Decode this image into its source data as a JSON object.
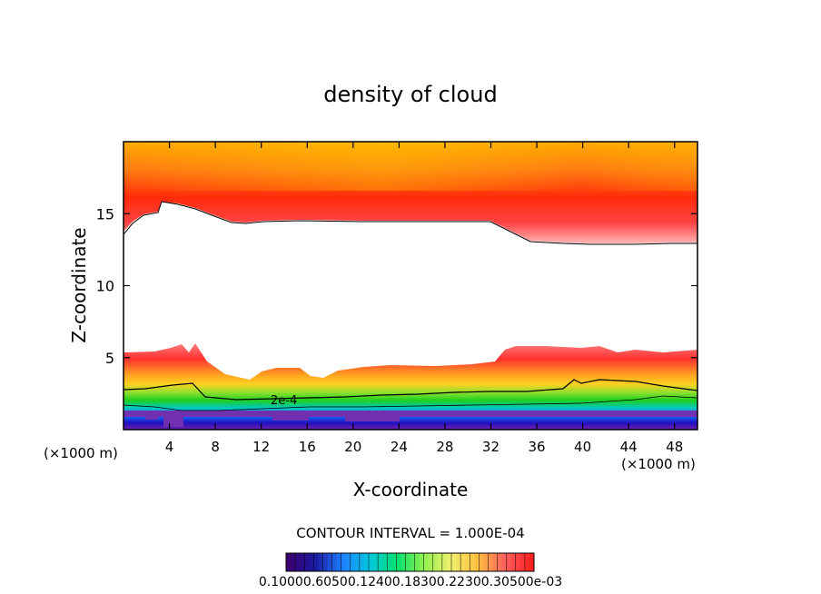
{
  "chart_data": {
    "type": "heatmap",
    "title": "density of cloud",
    "xlabel": "X-coordinate",
    "ylabel": "Z-coordinate",
    "x_unit_left": "(×1000 m)",
    "x_unit_right": "(×1000 m)",
    "xlim": [
      0,
      50
    ],
    "ylim": [
      0,
      20
    ],
    "x_ticks": [
      4,
      8,
      12,
      16,
      20,
      24,
      28,
      32,
      36,
      40,
      44,
      48
    ],
    "x_tick_labels": [
      "4",
      "8",
      "12",
      "16",
      "20",
      "24",
      "28",
      "32",
      "36",
      "40",
      "44",
      "48"
    ],
    "y_ticks": [
      5,
      10,
      15
    ],
    "y_tick_labels": [
      "5",
      "10",
      "15"
    ],
    "contour_label": "2e-4",
    "contour_interval_text": "CONTOUR INTERVAL = 1.000E-04",
    "colorbar": {
      "labels_text": "0.10000.60500.12400.18300.22300.30500e-03",
      "colors": [
        "#3a0070",
        "#1a1aa0",
        "#1f7fff",
        "#00c8e0",
        "#00e070",
        "#90f050",
        "#f0f070",
        "#ffc040",
        "#ff6060",
        "#ff2020"
      ]
    },
    "regions": [
      {
        "name": "upper cloud layer",
        "z_range": [
          13,
          20
        ],
        "density": "high (red to orange)"
      },
      {
        "name": "clear region",
        "z_range": [
          5.5,
          13
        ],
        "density": "none (white)"
      },
      {
        "name": "lower cloud layer",
        "z_range": [
          0.5,
          5.5
        ],
        "density": "red to purple"
      }
    ]
  }
}
